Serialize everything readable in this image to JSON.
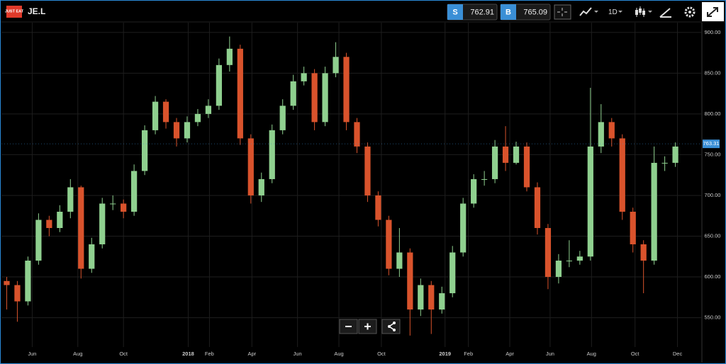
{
  "header": {
    "logo_text": "JUST EAT",
    "symbol": "JE.L",
    "sell_label": "S",
    "sell_price": "762.91",
    "buy_label": "B",
    "buy_price": "765.09",
    "timeframe": "1D"
  },
  "chart_data": {
    "type": "candlestick",
    "up_color": "#8fd08f",
    "down_color": "#d9532c",
    "grid": true,
    "series": {
      "open": [
        595,
        590,
        570,
        620,
        670,
        660,
        680,
        710,
        610,
        640,
        690,
        690,
        680,
        730,
        780,
        815,
        790,
        770,
        790,
        800,
        810,
        860,
        880,
        770,
        700,
        720,
        780,
        810,
        840,
        850,
        790,
        850,
        870,
        790,
        760,
        700,
        670,
        610,
        630,
        560,
        590,
        560,
        580,
        630,
        690,
        720,
        720,
        760,
        740,
        760,
        710,
        660,
        600,
        620,
        620,
        625,
        760,
        790,
        770,
        680,
        640,
        620,
        740,
        740
      ],
      "high": [
        600,
        595,
        625,
        678,
        675,
        688,
        720,
        712,
        648,
        697,
        700,
        695,
        738,
        786,
        822,
        818,
        795,
        797,
        806,
        818,
        868,
        895,
        885,
        775,
        728,
        787,
        818,
        848,
        858,
        855,
        858,
        888,
        875,
        795,
        765,
        705,
        675,
        660,
        635,
        598,
        595,
        588,
        638,
        697,
        726,
        730,
        768,
        785,
        766,
        765,
        716,
        665,
        628,
        645,
        632,
        832,
        812,
        795,
        775,
        685,
        645,
        760,
        748,
        765
      ],
      "low": [
        560,
        545,
        565,
        615,
        650,
        655,
        672,
        598,
        605,
        635,
        682,
        672,
        675,
        725,
        775,
        782,
        760,
        765,
        785,
        795,
        805,
        852,
        762,
        690,
        692,
        715,
        775,
        805,
        835,
        780,
        785,
        845,
        780,
        752,
        692,
        662,
        602,
        600,
        528,
        552,
        530,
        555,
        575,
        625,
        685,
        712,
        715,
        730,
        738,
        705,
        652,
        585,
        592,
        612,
        615,
        620,
        752,
        760,
        670,
        630,
        580,
        615,
        730,
        735
      ],
      "close": [
        590,
        570,
        620,
        670,
        660,
        680,
        710,
        610,
        640,
        690,
        690,
        680,
        730,
        780,
        815,
        790,
        770,
        790,
        800,
        810,
        860,
        880,
        770,
        700,
        720,
        780,
        810,
        840,
        850,
        790,
        850,
        870,
        790,
        760,
        700,
        670,
        610,
        630,
        560,
        590,
        560,
        580,
        630,
        690,
        720,
        720,
        760,
        740,
        760,
        710,
        660,
        600,
        620,
        620,
        625,
        760,
        790,
        770,
        680,
        640,
        620,
        740,
        740,
        760
      ]
    },
    "last_price": {
      "value": 763.31,
      "label": "763.31"
    },
    "xlim": [
      0,
      66
    ],
    "xticks": [
      {
        "value": 2.9,
        "label": "Jun"
      },
      {
        "value": 7.2,
        "label": "Aug"
      },
      {
        "value": 11.5,
        "label": "Oct"
      },
      {
        "value": 17.6,
        "label": "2018"
      },
      {
        "value": 19.6,
        "label": "Feb"
      },
      {
        "value": 23.6,
        "label": "Apr"
      },
      {
        "value": 27.9,
        "label": "Jun"
      },
      {
        "value": 31.8,
        "label": "Aug"
      },
      {
        "value": 35.8,
        "label": "Oct"
      },
      {
        "value": 41.8,
        "label": "2019"
      },
      {
        "value": 44.0,
        "label": "Feb"
      },
      {
        "value": 47.9,
        "label": "Apr"
      },
      {
        "value": 51.7,
        "label": "Jun"
      },
      {
        "value": 55.6,
        "label": "Aug"
      },
      {
        "value": 59.7,
        "label": "Oct"
      },
      {
        "value": 63.7,
        "label": "Dec"
      }
    ],
    "ylim": [
      514,
      912
    ],
    "yticks": [
      {
        "value": 550,
        "label": "550.00"
      },
      {
        "value": 600,
        "label": "600.00"
      },
      {
        "value": 650,
        "label": "650.00"
      },
      {
        "value": 700,
        "label": "700.00"
      },
      {
        "value": 750,
        "label": "750.00"
      },
      {
        "value": 800,
        "label": "800.00"
      },
      {
        "value": 850,
        "label": "850.00"
      },
      {
        "value": 900,
        "label": "900.00"
      }
    ]
  }
}
